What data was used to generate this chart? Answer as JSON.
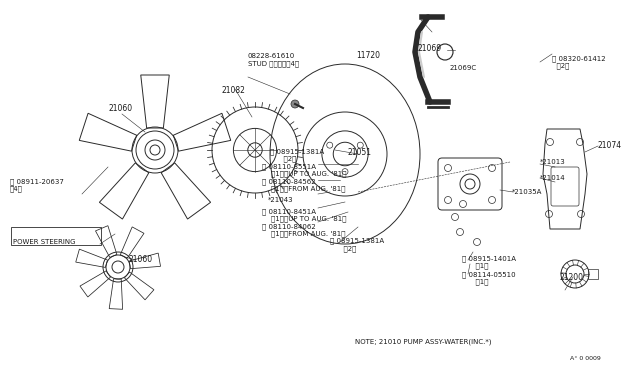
{
  "bg_color": "#ffffff",
  "line_color": "#2a2a2a",
  "text_color": "#1a1a1a",
  "fig_width": 6.4,
  "fig_height": 3.72,
  "dpi": 100,
  "border_color": "#aaaaaa",
  "labels": {
    "stud": "08228-61610\nSTUD スタッドＨ4）",
    "p21082": "21082",
    "p11720": "11720",
    "p21051": "21051",
    "p21060a": "21060",
    "p08911": "Ⓝ 08911-20637\n（4）",
    "p21069": "21069",
    "p21069c": "21069C",
    "p08320": "Ⓢ 08320-61412\n  （2）",
    "p21074": "21074",
    "p21013": "*21013",
    "p21014": "*21014",
    "p21035a": "*21035A",
    "p08915a": "ⓔ 08915-1381A\n      （2）",
    "p08110_8551a": "Ⓑ 08110-8551A\n    （1）（UP TO AUG. '81）",
    "p08110_84562": "Ⓑ 08110-84562\n    （1）（FROM AUG. '81）",
    "p21043": "*21043",
    "p08110_8451a": "Ⓑ 08110-8451A\n    （1）（UP TO AUG. '81）",
    "p08110_84062": "Ⓑ 08110-84062\n    （1）（FROM AUG. '81）",
    "p08915b": "ⓔ 08915-1381A\n      （2）",
    "p08915_1401a": "ⓔ 08915-1401A\n      （1）",
    "p08114": "Ⓑ 08114-05510\n      （1）",
    "p21200": "21200",
    "p21060b": "21060",
    "power_steering": "POWER STEERING",
    "note": "NOTE; 21010 PUMP ASSY-WATER(INC.*)",
    "ref": "A° 0 0009"
  }
}
